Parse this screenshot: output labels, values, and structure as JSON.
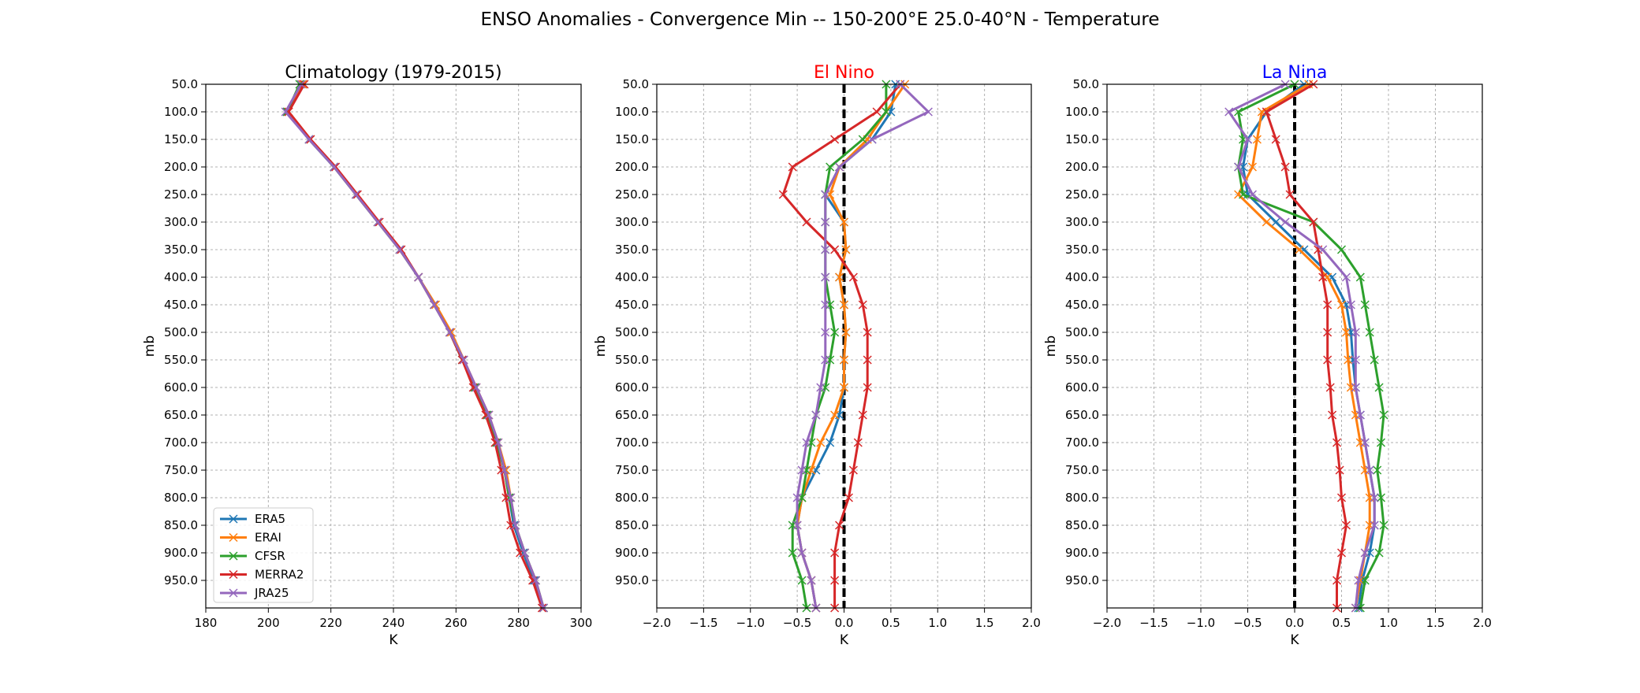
{
  "figure": {
    "title": "ENSO Anomalies - Convergence Min -- 150-200°E 25.0-40°N - Temperature"
  },
  "colors": {
    "ERA5": "#1f77b4",
    "ERAI": "#ff7f0e",
    "CFSR": "#2ca02c",
    "MERRA2": "#d62728",
    "JRA25": "#9467bd"
  },
  "chart_data": [
    {
      "type": "line",
      "title": "Climatology (1979-2015)",
      "title_color": "#000000",
      "xlabel": "K",
      "ylabel": "mb",
      "xlim": [
        180,
        300
      ],
      "ylim": [
        1000,
        50
      ],
      "xticks": [
        "180",
        "200",
        "220",
        "240",
        "260",
        "280",
        "300"
      ],
      "yticks": [
        "50.0",
        "100.0",
        "150.0",
        "200.0",
        "250.0",
        "300.0",
        "350.0",
        "400.0",
        "450.0",
        "500.0",
        "550.0",
        "600.0",
        "650.0",
        "700.0",
        "750.0",
        "800.0",
        "850.0",
        "900.0",
        "950.0"
      ],
      "grid": true,
      "legend": "lower-left",
      "zero_line": false,
      "pressure": [
        50,
        100,
        150,
        200,
        250,
        300,
        350,
        400,
        450,
        500,
        550,
        600,
        650,
        700,
        750,
        800,
        850,
        900,
        950,
        1000
      ],
      "series": [
        {
          "name": "ERA5",
          "x": [
            211,
            206,
            213,
            221,
            228,
            235,
            242,
            248,
            253,
            258,
            262,
            266,
            270,
            273,
            275.5,
            277,
            278.5,
            281.5,
            285,
            288
          ]
        },
        {
          "name": "ERAI",
          "x": [
            211,
            206.5,
            213.5,
            221,
            228,
            235,
            242,
            248,
            253.5,
            258.5,
            262.5,
            266.5,
            270.5,
            273.5,
            276,
            277.5,
            279,
            282,
            285.5,
            288
          ]
        },
        {
          "name": "CFSR",
          "x": [
            210,
            206,
            213,
            221,
            228,
            235,
            242,
            248,
            253,
            258,
            262,
            266,
            270,
            273,
            275.5,
            277,
            279,
            282,
            285.5,
            288
          ]
        },
        {
          "name": "MERRA2",
          "x": [
            211.5,
            206.5,
            213.5,
            221.5,
            228.5,
            235.5,
            242.5,
            248,
            253,
            258,
            262,
            265.5,
            269.5,
            272.5,
            274.5,
            276,
            277.5,
            280.5,
            284.5,
            287.5
          ]
        },
        {
          "name": "JRA25",
          "x": [
            210.5,
            205.5,
            213,
            221,
            228,
            235,
            242,
            248,
            253,
            258,
            262.5,
            266.5,
            270.5,
            273.5,
            275.5,
            277.5,
            279,
            282,
            285.5,
            288
          ]
        }
      ]
    },
    {
      "type": "line",
      "title": "El Nino",
      "title_color": "#ff0000",
      "xlabel": "K",
      "ylabel": "mb",
      "xlim": [
        -2.0,
        2.0
      ],
      "ylim": [
        1000,
        50
      ],
      "xticks": [
        "−2.0",
        "−1.5",
        "−1.0",
        "−0.5",
        "0.0",
        "0.5",
        "1.0",
        "1.5",
        "2.0"
      ],
      "yticks": [
        "50.0",
        "100.0",
        "150.0",
        "200.0",
        "250.0",
        "300.0",
        "350.0",
        "400.0",
        "450.0",
        "500.0",
        "550.0",
        "600.0",
        "650.0",
        "700.0",
        "750.0",
        "800.0",
        "850.0",
        "900.0",
        "950.0"
      ],
      "grid": true,
      "zero_line": true,
      "pressure": [
        50,
        100,
        150,
        200,
        250,
        300,
        350,
        400,
        450,
        500,
        550,
        600,
        650,
        700,
        750,
        800,
        850,
        900,
        950,
        1000
      ],
      "series": [
        {
          "name": "ERA5",
          "x": [
            0.55,
            0.5,
            0.3,
            -0.05,
            -0.2,
            0.0,
            0.02,
            -0.05,
            0.0,
            0.02,
            0.0,
            0.0,
            -0.05,
            -0.15,
            -0.3,
            -0.45,
            -0.5,
            -0.45,
            -0.35,
            -0.3
          ]
        },
        {
          "name": "ERAI",
          "x": [
            0.65,
            0.45,
            0.25,
            -0.05,
            -0.15,
            0.0,
            0.02,
            -0.05,
            0.0,
            0.02,
            0.0,
            0.0,
            -0.1,
            -0.25,
            -0.35,
            -0.45,
            -0.5,
            -0.45,
            -0.35,
            -0.3
          ]
        },
        {
          "name": "CFSR",
          "x": [
            0.45,
            0.45,
            0.2,
            -0.15,
            -0.2,
            -0.2,
            -0.2,
            -0.2,
            -0.15,
            -0.1,
            -0.15,
            -0.2,
            -0.3,
            -0.35,
            -0.4,
            -0.45,
            -0.55,
            -0.55,
            -0.45,
            -0.4
          ]
        },
        {
          "name": "MERRA2",
          "x": [
            0.6,
            0.35,
            -0.1,
            -0.55,
            -0.65,
            -0.4,
            -0.1,
            0.1,
            0.2,
            0.25,
            0.25,
            0.25,
            0.2,
            0.15,
            0.1,
            0.05,
            -0.05,
            -0.1,
            -0.1,
            -0.1
          ]
        },
        {
          "name": "JRA25",
          "x": [
            0.6,
            0.9,
            0.3,
            -0.05,
            -0.2,
            -0.2,
            -0.2,
            -0.2,
            -0.2,
            -0.2,
            -0.2,
            -0.25,
            -0.3,
            -0.4,
            -0.45,
            -0.5,
            -0.5,
            -0.45,
            -0.35,
            -0.3
          ]
        }
      ]
    },
    {
      "type": "line",
      "title": "La Nina",
      "title_color": "#0000ff",
      "xlabel": "K",
      "ylabel": "mb",
      "xlim": [
        -2.0,
        2.0
      ],
      "ylim": [
        1000,
        50
      ],
      "xticks": [
        "−2.0",
        "−1.5",
        "−1.0",
        "−0.5",
        "0.0",
        "0.5",
        "1.0",
        "1.5",
        "2.0"
      ],
      "yticks": [
        "50.0",
        "100.0",
        "150.0",
        "200.0",
        "250.0",
        "300.0",
        "350.0",
        "400.0",
        "450.0",
        "500.0",
        "550.0",
        "600.0",
        "650.0",
        "700.0",
        "750.0",
        "800.0",
        "850.0",
        "900.0",
        "950.0"
      ],
      "grid": true,
      "zero_line": true,
      "pressure": [
        50,
        100,
        150,
        200,
        250,
        300,
        350,
        400,
        450,
        500,
        550,
        600,
        650,
        700,
        750,
        800,
        850,
        900,
        950,
        1000
      ],
      "series": [
        {
          "name": "ERA5",
          "x": [
            0.1,
            -0.3,
            -0.5,
            -0.55,
            -0.5,
            -0.2,
            0.1,
            0.4,
            0.55,
            0.6,
            0.62,
            0.65,
            0.7,
            0.75,
            0.8,
            0.85,
            0.85,
            0.8,
            0.72,
            0.68
          ]
        },
        {
          "name": "ERAI",
          "x": [
            0.15,
            -0.35,
            -0.4,
            -0.45,
            -0.6,
            -0.3,
            0.05,
            0.35,
            0.5,
            0.55,
            0.57,
            0.6,
            0.65,
            0.7,
            0.75,
            0.8,
            0.8,
            0.75,
            0.7,
            0.65
          ]
        },
        {
          "name": "CFSR",
          "x": [
            0.0,
            -0.6,
            -0.55,
            -0.6,
            -0.55,
            0.2,
            0.5,
            0.7,
            0.75,
            0.8,
            0.85,
            0.9,
            0.95,
            0.92,
            0.88,
            0.92,
            0.95,
            0.9,
            0.75,
            0.7
          ]
        },
        {
          "name": "MERRA2",
          "x": [
            0.2,
            -0.3,
            -0.2,
            -0.1,
            -0.05,
            0.2,
            0.25,
            0.3,
            0.35,
            0.35,
            0.35,
            0.38,
            0.4,
            0.45,
            0.48,
            0.5,
            0.55,
            0.5,
            0.45,
            0.45
          ]
        },
        {
          "name": "JRA25",
          "x": [
            -0.1,
            -0.7,
            -0.5,
            -0.6,
            -0.45,
            -0.1,
            0.3,
            0.55,
            0.6,
            0.65,
            0.65,
            0.65,
            0.7,
            0.75,
            0.8,
            0.85,
            0.85,
            0.75,
            0.68,
            0.65
          ]
        }
      ]
    }
  ]
}
